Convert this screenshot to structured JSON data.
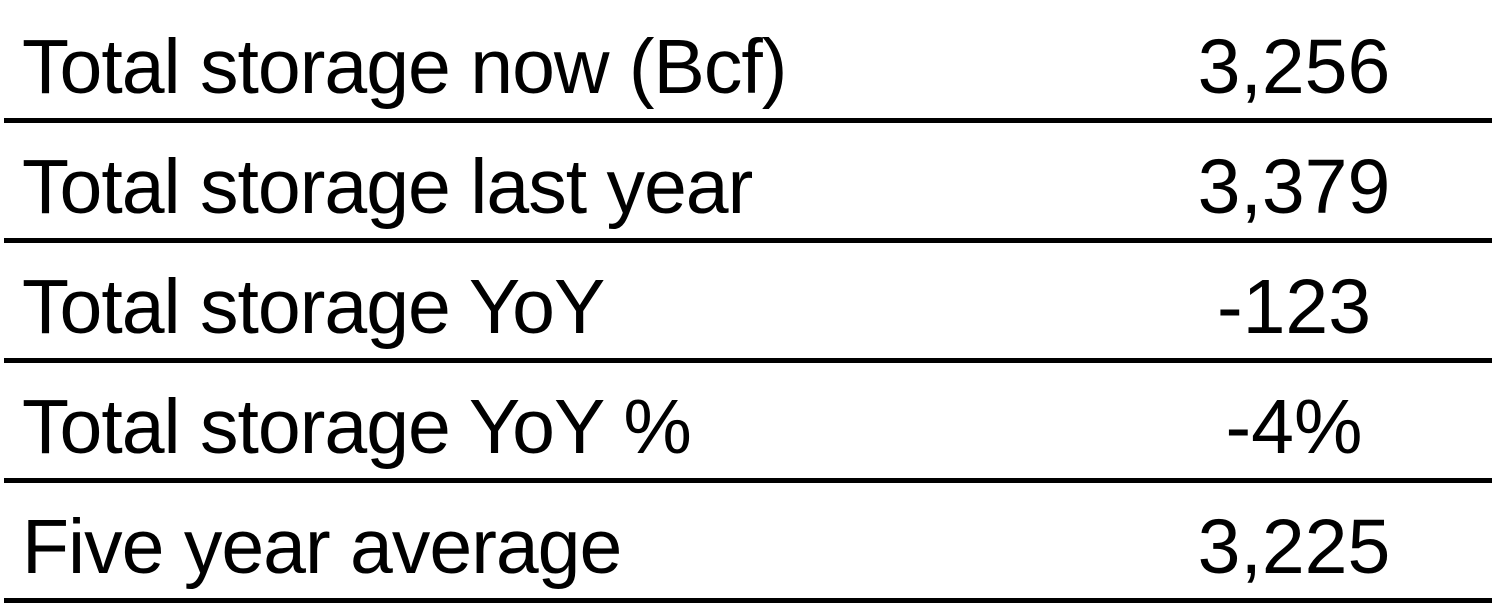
{
  "rows": [
    {
      "label": "Total storage now (Bcf)",
      "value": "3,256"
    },
    {
      "label": "Total storage last year",
      "value": "3,379"
    },
    {
      "label": "Total storage YoY",
      "value": "-123"
    },
    {
      "label": "Total storage YoY %",
      "value": "-4%"
    },
    {
      "label": "Five year average",
      "value": "3,225"
    }
  ]
}
